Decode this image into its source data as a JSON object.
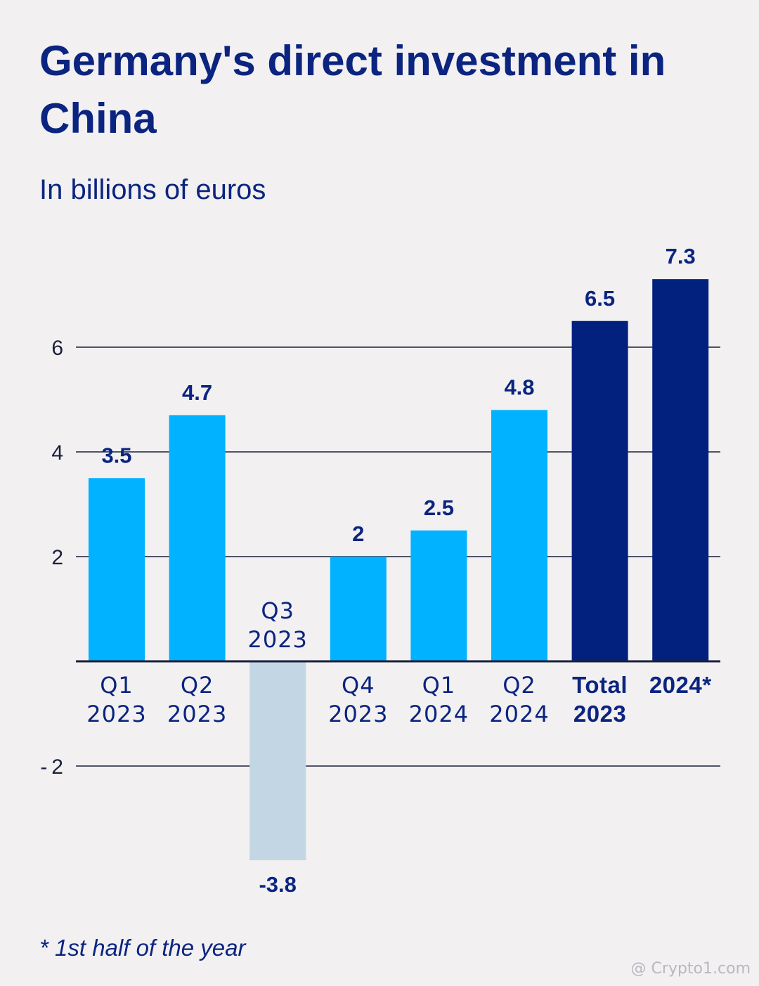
{
  "title": "Germany's direct investment in China",
  "subtitle": "In billions of euros",
  "footnote": "* 1st half of the year",
  "watermark": "@ Crypto1.com",
  "colors": {
    "quarter_bar": "#00b2ff",
    "negative_bar": "#c3d6e3",
    "total_bar": "#02217f",
    "text": "#0b2480",
    "background": "#f2f0f1"
  },
  "chart_data": {
    "type": "bar",
    "title": "Germany's direct investment in China",
    "ylabel": "In billions of euros",
    "xlabel": "",
    "ylim": [
      -4,
      7.5
    ],
    "yticks": [
      -2,
      2,
      4,
      6
    ],
    "grid": true,
    "categories": [
      {
        "line1": "Q1",
        "line2": "2023",
        "value": 3.5,
        "label": "3.5",
        "kind": "quarter"
      },
      {
        "line1": "Q2",
        "line2": "2023",
        "value": 4.7,
        "label": "4.7",
        "kind": "quarter"
      },
      {
        "line1": "Q3",
        "line2": "2023",
        "value": -3.8,
        "label": "-3.8",
        "kind": "negative"
      },
      {
        "line1": "Q4",
        "line2": "2023",
        "value": 2,
        "label": "2",
        "kind": "quarter"
      },
      {
        "line1": "Q1",
        "line2": "2024",
        "value": 2.5,
        "label": "2.5",
        "kind": "quarter"
      },
      {
        "line1": "Q2",
        "line2": "2024",
        "value": 4.8,
        "label": "4.8",
        "kind": "quarter"
      },
      {
        "line1": "Total",
        "line2": "2023",
        "value": 6.5,
        "label": "6.5",
        "kind": "total"
      },
      {
        "line1": "2024*",
        "line2": "",
        "value": 7.3,
        "label": "7.3",
        "kind": "total"
      }
    ]
  }
}
